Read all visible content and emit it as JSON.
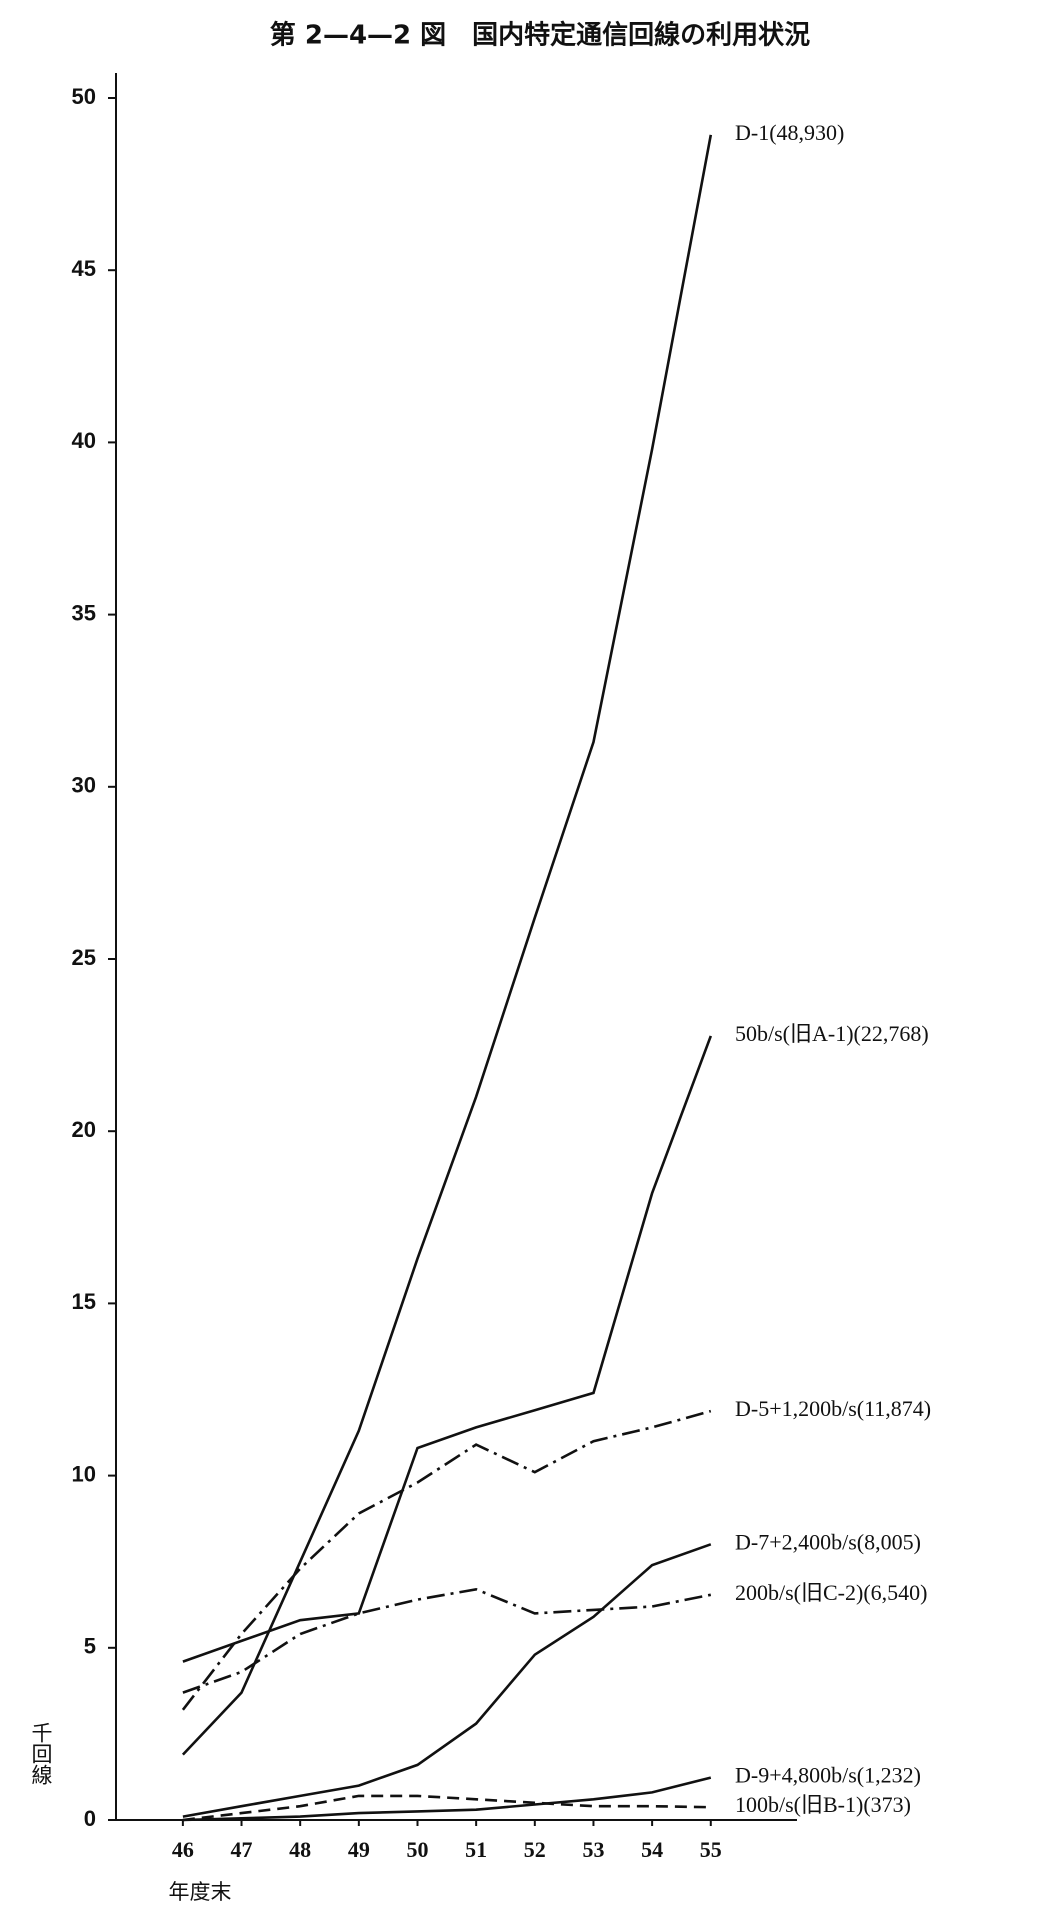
{
  "chart_data": {
    "type": "line",
    "title": "第 2—4—2 図　国内特定通信回線の利用状況",
    "y_label": "千回線",
    "x_label": "年度末",
    "x": [
      46,
      47,
      48,
      49,
      50,
      51,
      52,
      53,
      54,
      55
    ],
    "xlim": [
      44.86,
      56.47
    ],
    "xticks": [
      46,
      47,
      48,
      49,
      50,
      51,
      52,
      53,
      54,
      55
    ],
    "ylim": [
      0,
      50
    ],
    "yticks": [
      0,
      5,
      10,
      15,
      20,
      25,
      30,
      35,
      40,
      45,
      50
    ],
    "grid": false,
    "series": [
      {
        "name": "D-1(48,930)",
        "color": "#111111",
        "style": "solid",
        "values": [
          1.9,
          3.7,
          7.5,
          11.3,
          16.3,
          21.0,
          26.2,
          31.3,
          39.8,
          48.93
        ]
      },
      {
        "name": "50b/s(旧A-1)(22,768)",
        "color": "#111111",
        "style": "solid",
        "values": [
          4.6,
          5.2,
          5.8,
          6.0,
          10.8,
          11.4,
          11.9,
          12.4,
          18.2,
          22.768
        ]
      },
      {
        "name": "D-5+1,200b/s(11,874)",
        "color": "#111111",
        "style": "dash-dot",
        "values": [
          3.2,
          5.4,
          7.3,
          8.9,
          9.8,
          10.9,
          10.1,
          11.0,
          11.4,
          11.874
        ]
      },
      {
        "name": "D-7+2,400b/s(8,005)",
        "color": "#111111",
        "style": "solid",
        "values": [
          0.1,
          0.4,
          0.7,
          1.0,
          1.6,
          2.8,
          4.8,
          5.9,
          7.4,
          8.005
        ]
      },
      {
        "name": "200b/s(旧C-2)(6,540)",
        "color": "#111111",
        "style": "dash-dot",
        "values": [
          3.7,
          4.3,
          5.4,
          6.0,
          6.4,
          6.7,
          6.0,
          6.1,
          6.2,
          6.54
        ]
      },
      {
        "name": "D-9+4,800b/s(1,232)",
        "color": "#111111",
        "style": "solid",
        "values": [
          0.0,
          0.05,
          0.1,
          0.2,
          0.25,
          0.3,
          0.45,
          0.6,
          0.8,
          1.232
        ]
      },
      {
        "name": "100b/s(旧B-1)(373)",
        "color": "#111111",
        "style": "dashed",
        "values": [
          0.0,
          0.2,
          0.4,
          0.7,
          0.7,
          0.6,
          0.5,
          0.4,
          0.4,
          0.373
        ]
      }
    ]
  }
}
